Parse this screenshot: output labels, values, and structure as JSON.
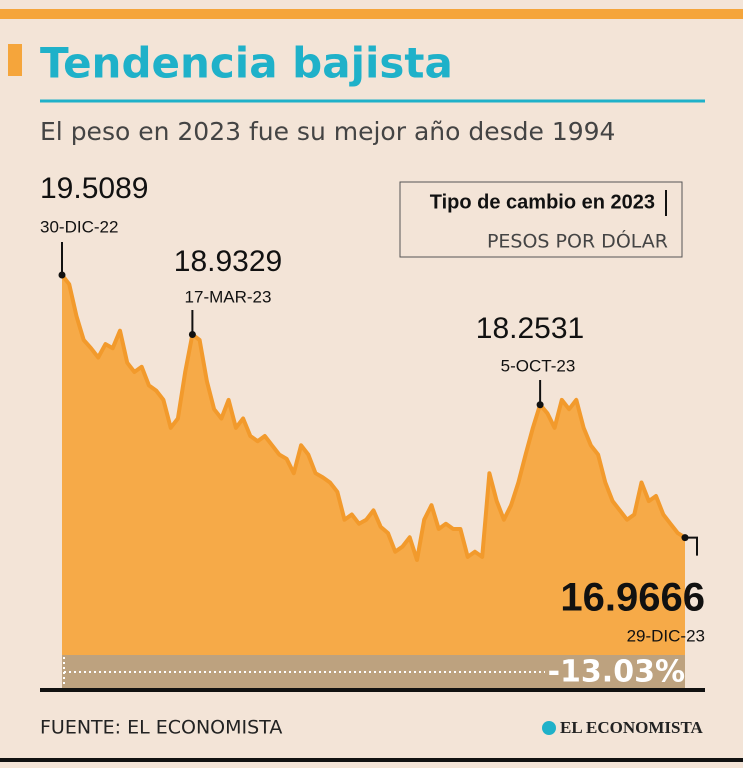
{
  "chart_data": {
    "type": "area",
    "title": "Tendencia bajista",
    "subtitle": "El peso en 2023 fue su mejor año desde 1994",
    "legend_title": "Tipo de cambio en 2023",
    "legend_subtitle": "PESOS POR DÓLAR",
    "color": "#f6aa48",
    "line_color": "#f29a2c",
    "values": [
      19.5089,
      19.42,
      19.11,
      18.88,
      18.8,
      18.71,
      18.84,
      18.8,
      18.97,
      18.66,
      18.57,
      18.62,
      18.44,
      18.39,
      18.3,
      18.03,
      18.12,
      18.57,
      18.9329,
      18.88,
      18.48,
      18.21,
      18.12,
      18.3,
      18.03,
      18.12,
      17.95,
      17.9,
      17.95,
      17.86,
      17.77,
      17.73,
      17.59,
      17.86,
      17.77,
      17.59,
      17.55,
      17.5,
      17.41,
      17.14,
      17.19,
      17.1,
      17.14,
      17.23,
      17.07,
      17.01,
      16.83,
      16.88,
      16.97,
      16.75,
      17.14,
      17.28,
      17.05,
      17.1,
      17.05,
      17.05,
      16.78,
      16.83,
      16.78,
      17.59,
      17.32,
      17.14,
      17.28,
      17.5,
      17.77,
      18.03,
      18.2531,
      18.17,
      18.03,
      18.3,
      18.21,
      18.3,
      18.03,
      17.86,
      17.77,
      17.5,
      17.32,
      17.23,
      17.14,
      17.19,
      17.5,
      17.32,
      17.37,
      17.19,
      17.1,
      17.01,
      16.9666
    ],
    "annotations": [
      {
        "label": "30-DIC-22",
        "value": 19.5089
      },
      {
        "label": "17-MAR-23",
        "value": 18.9329
      },
      {
        "label": "5-OCT-23",
        "value": 18.2531
      },
      {
        "label": "29-DIC-23",
        "value": 16.9666
      }
    ],
    "change_label": "-13.03%",
    "source": "FUENTE: EL ECONOMISTA",
    "logo": "EL ECONOMISTA"
  }
}
